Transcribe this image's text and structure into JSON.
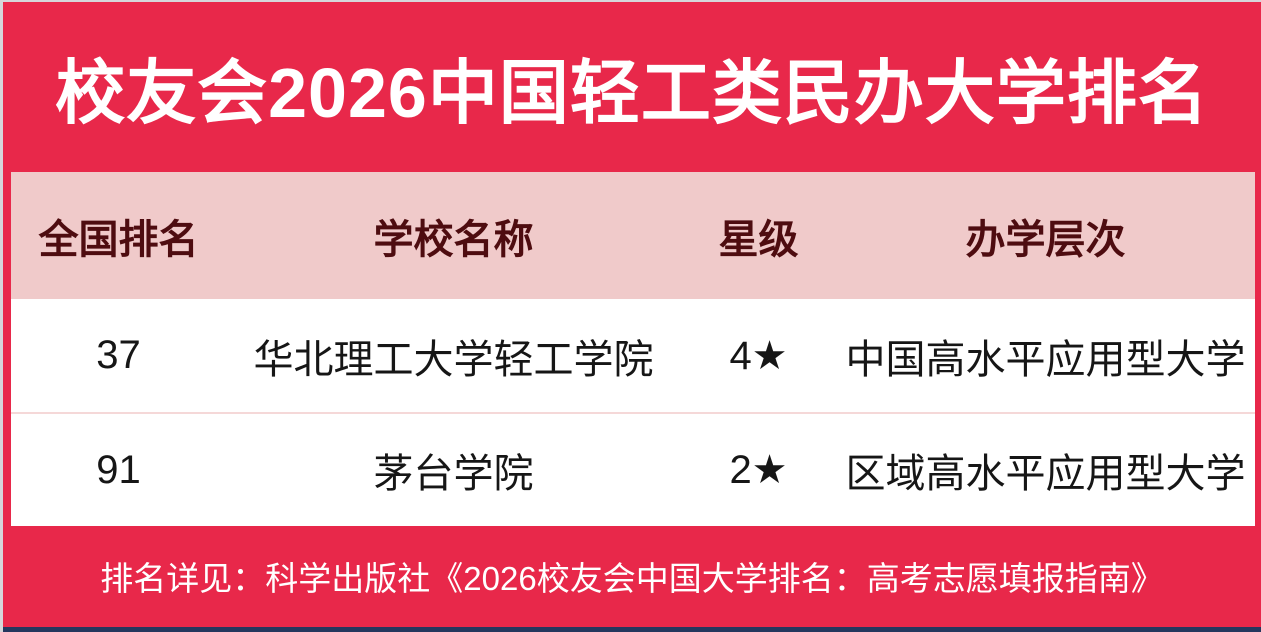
{
  "title": "校友会2026中国轻工类民办大学排名",
  "table": {
    "headers": [
      "全国排名",
      "学校名称",
      "星级",
      "办学层次"
    ],
    "rows": [
      {
        "rank": "37",
        "school": "华北理工大学轻工学院",
        "stars": "4★",
        "level": "中国高水平应用型大学"
      },
      {
        "rank": "91",
        "school": "茅台学院",
        "stars": "2★",
        "level": "区域高水平应用型大学"
      }
    ]
  },
  "footer": {
    "note": "排名详见：科学出版社《2026校友会中国大学排名：高考志愿填报指南》"
  },
  "colors": {
    "background_red": "#e8284a",
    "header_pink": "#f0caca",
    "header_text_maroon": "#4e0c10",
    "row_divider_pink": "#f5d8d8",
    "bottom_bar_navy": "#24375e",
    "title_text": "#ffffff",
    "row_text": "#161616"
  }
}
